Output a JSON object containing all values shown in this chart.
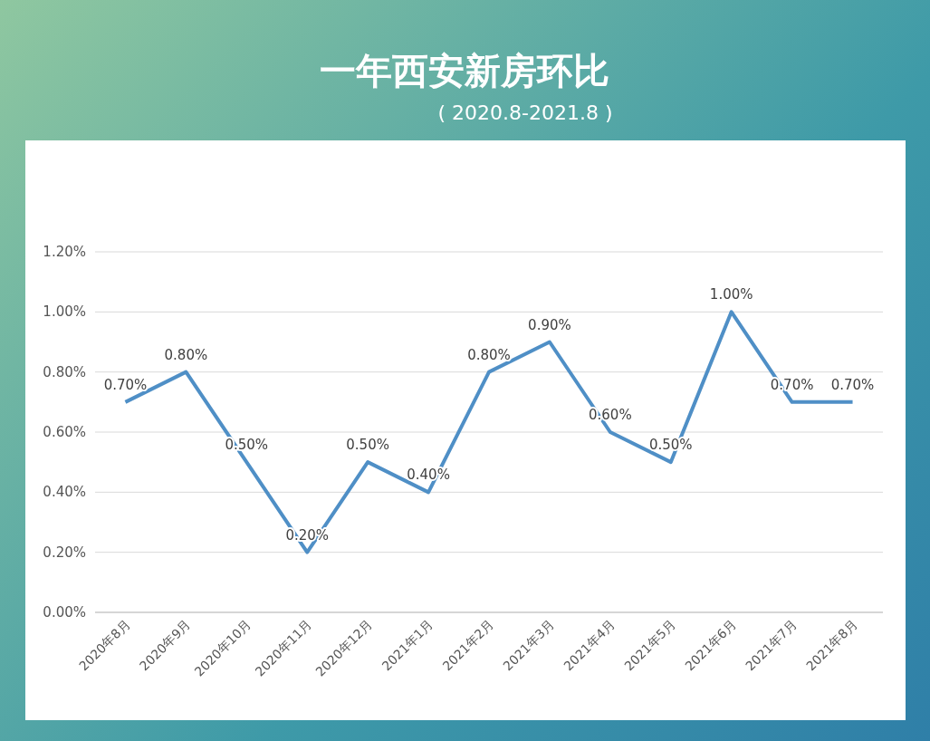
{
  "chart_data": {
    "type": "line",
    "title": "一年西安新房环比",
    "subtitle": "( 2020.8-2021.8 )",
    "categories": [
      "2020年8月",
      "2020年9月",
      "2020年10月",
      "2020年11月",
      "2020年12月",
      "2021年1月",
      "2021年2月",
      "2021年3月",
      "2021年4月",
      "2021年5月",
      "2021年6月",
      "2021年7月",
      "2021年8月"
    ],
    "series": [
      {
        "color": "#4f8fc6",
        "values": [
          0.7,
          0.8,
          0.5,
          0.2,
          0.5,
          0.4,
          0.8,
          0.9,
          0.6,
          0.5,
          1.0,
          0.7,
          0.7
        ]
      }
    ],
    "value_labels": [
      "0.70%",
      "0.80%",
      "0.50%",
      "0.20%",
      "0.50%",
      "0.40%",
      "0.80%",
      "0.90%",
      "0.60%",
      "0.50%",
      "1.00%",
      "0.70%",
      "0.70%"
    ],
    "ylim": [
      0,
      1.2
    ],
    "yticks": [
      {
        "value": 0,
        "label": "0.00%"
      },
      {
        "value": 0.2,
        "label": "0.20%"
      },
      {
        "value": 0.4,
        "label": "0.40%"
      },
      {
        "value": 0.6,
        "label": "0.60%"
      },
      {
        "value": 0.8,
        "label": "0.80%"
      },
      {
        "value": 1.0,
        "label": "1.00%"
      },
      {
        "value": 1.2,
        "label": "1.20%"
      }
    ],
    "grid": "y",
    "marker": "none",
    "line_style": "solid"
  }
}
